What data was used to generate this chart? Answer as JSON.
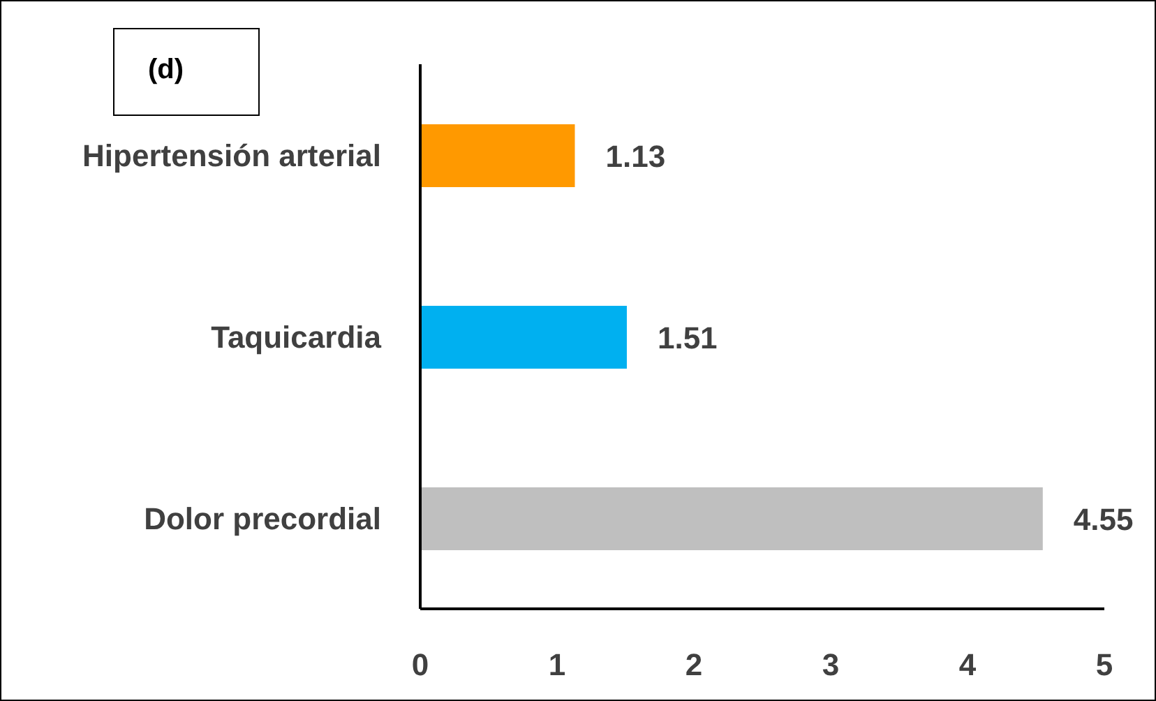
{
  "chart_data": {
    "type": "bar",
    "orientation": "horizontal",
    "title": "(d)",
    "categories": [
      "Hipertensión arterial",
      "Taquicardia",
      "Dolor precordial"
    ],
    "values": [
      1.13,
      1.51,
      4.55
    ],
    "colors": [
      "#ff9900",
      "#00b0f0",
      "#bfbfbf"
    ],
    "xlim": [
      0,
      5
    ],
    "xticks": [
      0,
      1,
      2,
      3,
      4,
      5
    ],
    "data_labels": true,
    "grid": false
  }
}
